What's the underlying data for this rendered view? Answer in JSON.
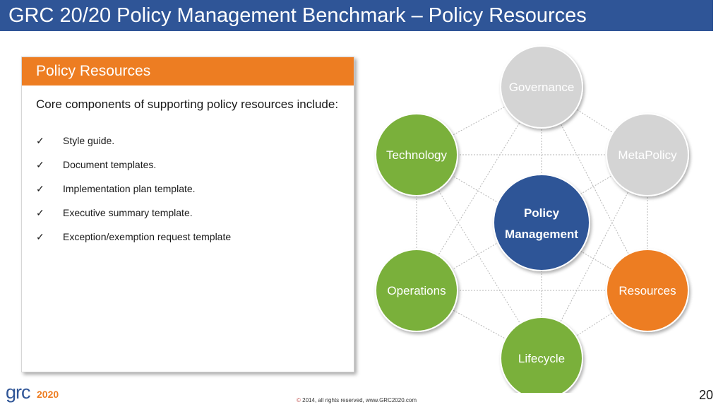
{
  "slide": {
    "title": "GRC 20/20 Policy Management Benchmark – Policy Resources",
    "page_number": "20",
    "footer_symbol": "©",
    "footer_text": "2014, all rights reserved, www.GRC2020.com",
    "logo_text": "grc",
    "logo_number": "2020"
  },
  "panel": {
    "header": "Policy Resources",
    "intro": "Core components of supporting policy resources include:",
    "check_symbol": "✓",
    "items": [
      "Style guide.",
      "Document templates.",
      "Implementation plan template.",
      "Executive summary template.",
      "Exception/exemption request template"
    ]
  },
  "diagram": {
    "center_line1": "Policy",
    "center_line2": "Management",
    "nodes": [
      {
        "label": "Governance",
        "color": "#d4d4d4"
      },
      {
        "label": "MetaPolicy",
        "color": "#d4d4d4"
      },
      {
        "label": "Resources",
        "color": "#ed7d22"
      },
      {
        "label": "Lifecycle",
        "color": "#7ab03b"
      },
      {
        "label": "Operations",
        "color": "#7ab03b"
      },
      {
        "label": "Technology",
        "color": "#7ab03b"
      }
    ],
    "center_color": "#2f5597"
  }
}
